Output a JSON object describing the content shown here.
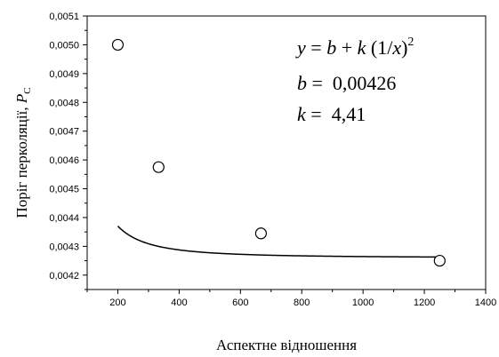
{
  "chart_data": {
    "type": "scatter",
    "x_axis": {
      "label": "Аспектне відношення",
      "lim": [
        100,
        1400
      ],
      "major_ticks": [
        200,
        400,
        600,
        800,
        1000,
        1200,
        1400
      ],
      "tick_labels": [
        "200",
        "400",
        "600",
        "800",
        "1000",
        "1200",
        "1400"
      ],
      "minor_step": 100
    },
    "y_axis": {
      "label_main": "Поріг перколяції, ",
      "label_symbol": "P",
      "label_subscript": "C",
      "lim": [
        0.00415,
        0.0051
      ],
      "major_ticks": [
        0.0042,
        0.0043,
        0.0044,
        0.0045,
        0.0046,
        0.0047,
        0.0048,
        0.0049,
        0.005,
        0.0051
      ],
      "tick_labels": [
        "0,0042",
        "0,0043",
        "0,0044",
        "0,0045",
        "0,0046",
        "0,0047",
        "0,0048",
        "0,0049",
        "0,0050",
        "0,0051"
      ],
      "minor_step": 5e-05
    },
    "grid": false,
    "legend": false,
    "points": [
      {
        "x": 200,
        "y": 0.005
      },
      {
        "x": 333,
        "y": 0.004575
      },
      {
        "x": 667,
        "y": 0.004345
      },
      {
        "x": 1250,
        "y": 0.00425
      }
    ],
    "fit": {
      "type": "line",
      "formula": "y = b + k (1/x)^2",
      "b": 0.00426,
      "k": 4.41,
      "x_from": 200,
      "x_to": 1250
    },
    "annotation": {
      "y_var": "y",
      "eq": " = ",
      "b_var": "b",
      "plus": " + ",
      "k_var": "k",
      "paren": " (1/",
      "x_var": "x",
      "close": ")",
      "exp": "2",
      "b_eq": " =  ",
      "b_val": "0,00426",
      "k_eq": " =  ",
      "k_val": "4,41"
    }
  }
}
